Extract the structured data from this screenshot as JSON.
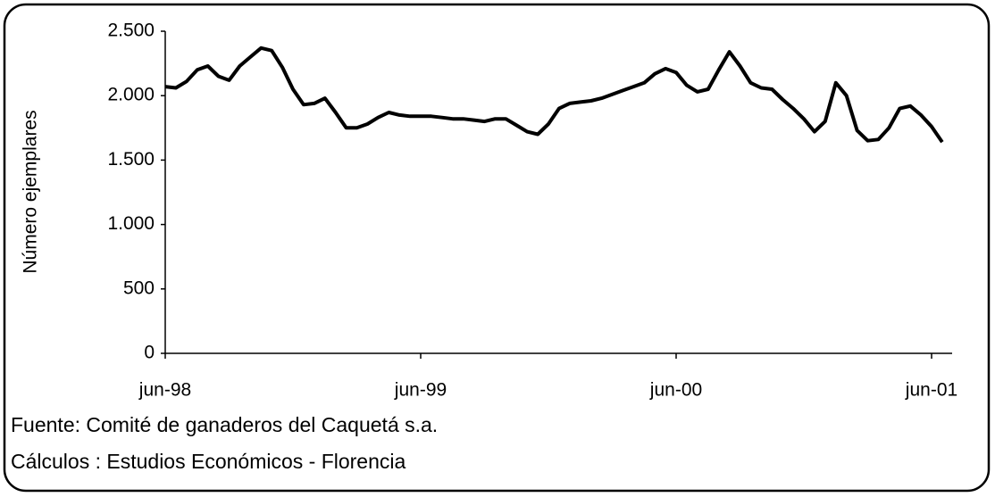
{
  "chart_data": {
    "type": "line",
    "y_label": "Número ejemplares",
    "categories": [
      "jun-98",
      null,
      null,
      null,
      null,
      null,
      null,
      null,
      null,
      null,
      null,
      null,
      null,
      null,
      null,
      null,
      null,
      null,
      null,
      null,
      null,
      null,
      null,
      null,
      "jun-99",
      null,
      null,
      null,
      null,
      null,
      null,
      null,
      null,
      null,
      null,
      null,
      null,
      null,
      null,
      null,
      null,
      null,
      null,
      null,
      null,
      null,
      null,
      null,
      "jun-00",
      null,
      null,
      null,
      null,
      null,
      null,
      null,
      null,
      null,
      null,
      null,
      null,
      null,
      null,
      null,
      null,
      null,
      null,
      null,
      null,
      null,
      null,
      null,
      "jun-01",
      null
    ],
    "values": [
      2070,
      2060,
      2110,
      2200,
      2230,
      2150,
      2120,
      2230,
      2300,
      2370,
      2350,
      2220,
      2050,
      1930,
      1940,
      1980,
      1870,
      1750,
      1750,
      1780,
      1830,
      1870,
      1850,
      1840,
      1840,
      1840,
      1830,
      1820,
      1820,
      1810,
      1800,
      1820,
      1820,
      1770,
      1720,
      1700,
      1780,
      1900,
      1940,
      1950,
      1960,
      1980,
      2010,
      2040,
      2070,
      2100,
      2170,
      2210,
      2180,
      2080,
      2030,
      2050,
      2200,
      2340,
      2230,
      2100,
      2060,
      2050,
      1970,
      1900,
      1820,
      1720,
      1800,
      2100,
      2000,
      1730,
      1650,
      1660,
      1750,
      1900,
      1920,
      1850,
      1760,
      1640
    ],
    "color": "#000000",
    "ylim": [
      0,
      2500
    ],
    "yticks": [
      0,
      500,
      {
        "value": 1000,
        "label": "1.000"
      },
      {
        "value": 1500,
        "label": "1.500"
      },
      {
        "value": 2000,
        "label": "2.000"
      },
      {
        "value": 2500,
        "label": "2.500"
      }
    ],
    "grid": false
  },
  "notes": [
    "Fuente: Comité de ganaderos del Caquetá s.a.",
    "Cálculos : Estudios Económicos - Florencia"
  ]
}
